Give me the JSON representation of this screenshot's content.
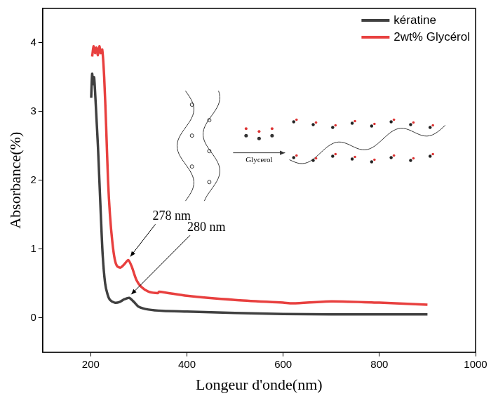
{
  "chart_data": {
    "type": "line",
    "x_label": "Longeur d'onde(nm)",
    "y_label": "Absorbance(%)",
    "xlim": [
      100,
      1000
    ],
    "xticks": [
      200,
      400,
      600,
      800,
      1000
    ],
    "ylim": [
      -0.5,
      4.5
    ],
    "yticks": [
      0,
      1,
      2,
      3,
      4
    ],
    "grid": false,
    "legend": "upper right",
    "series": [
      {
        "name": "kératine",
        "color": "#404040",
        "x": [
          201,
          203,
          205,
          207,
          209,
          212,
          215,
          218,
          221,
          225,
          230,
          235,
          240,
          250,
          260,
          270,
          280,
          290,
          300,
          320,
          350,
          400,
          500,
          600,
          700,
          800,
          900
        ],
        "values": [
          3.2,
          3.55,
          3.4,
          3.5,
          3.3,
          2.9,
          2.5,
          2.0,
          1.5,
          0.9,
          0.5,
          0.34,
          0.26,
          0.22,
          0.23,
          0.27,
          0.29,
          0.23,
          0.16,
          0.12,
          0.1,
          0.09,
          0.07,
          0.055,
          0.05,
          0.05,
          0.05
        ]
      },
      {
        "name": "2wt% Glycérol",
        "color": "#e8403f",
        "x": [
          203,
          206,
          209,
          212,
          215,
          218,
          221,
          224,
          228,
          232,
          236,
          240,
          245,
          250,
          255,
          262,
          270,
          278,
          285,
          295,
          305,
          320,
          340,
          342,
          400,
          500,
          600,
          620,
          700,
          800,
          900
        ],
        "values": [
          3.8,
          3.95,
          3.85,
          3.93,
          3.82,
          3.95,
          3.85,
          3.9,
          3.5,
          2.8,
          2.0,
          1.5,
          1.1,
          0.85,
          0.75,
          0.73,
          0.78,
          0.84,
          0.75,
          0.55,
          0.45,
          0.38,
          0.36,
          0.38,
          0.32,
          0.26,
          0.22,
          0.21,
          0.24,
          0.22,
          0.19
        ]
      }
    ],
    "annotations": [
      {
        "text": "278 nm",
        "x": 278,
        "y": 0.84
      },
      {
        "text": "280 nm",
        "x": 280,
        "y": 0.29
      },
      {
        "text": "Glycerol"
      }
    ]
  }
}
